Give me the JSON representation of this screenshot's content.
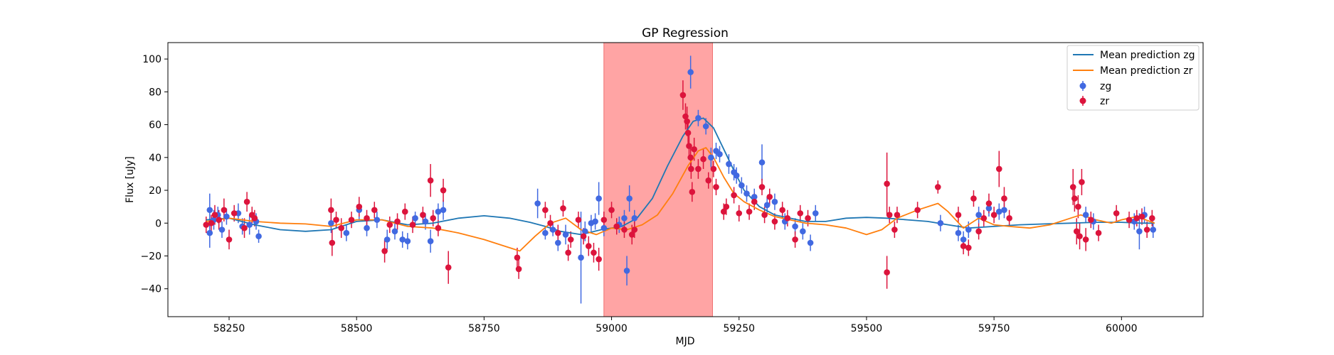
{
  "chart_data": {
    "type": "scatter",
    "title": "GP Regression",
    "xlabel": "MJD",
    "ylabel": "Flux [uJy]",
    "xlim": [
      58130,
      60160
    ],
    "ylim": [
      -57,
      110
    ],
    "xticks": [
      58250,
      58500,
      58750,
      59000,
      59250,
      59500,
      59750,
      60000
    ],
    "yticks": [
      -40,
      -20,
      0,
      20,
      40,
      60,
      80,
      100
    ],
    "grid": false,
    "legend": {
      "position": "top-right",
      "entries": [
        "Mean prediction zg",
        "Mean prediction zr",
        "zg",
        "zr"
      ]
    },
    "highlight_region": {
      "x0": 58985,
      "x1": 59198,
      "color": "#ff9a9a"
    },
    "colors": {
      "zg_line": "#1f77b4",
      "zr_line": "#ff7f0e",
      "zg_points": "#4169e1",
      "zr_points": "#dc143c"
    },
    "lines": [
      {
        "name": "Mean prediction zg",
        "x": [
          58205,
          58250,
          58300,
          58350,
          58400,
          58450,
          58500,
          58550,
          58600,
          58650,
          58700,
          58750,
          58800,
          58840,
          58870,
          58900,
          58940,
          58980,
          59020,
          59050,
          59080,
          59110,
          59140,
          59160,
          59180,
          59200,
          59220,
          59240,
          59260,
          59290,
          59320,
          59350,
          59380,
          59420,
          59460,
          59500,
          59540,
          59580,
          59620,
          59660,
          59700,
          59750,
          59800,
          59850,
          59900,
          59950,
          60000,
          60040,
          60065
        ],
        "y": [
          2,
          3,
          -1,
          -4,
          -5,
          -4,
          1,
          2,
          -1,
          0,
          3,
          4.5,
          3,
          0.5,
          -2,
          -5,
          -7,
          -4,
          -2,
          3,
          15,
          35,
          53,
          62,
          64,
          58,
          45,
          32,
          20,
          10,
          5,
          3,
          1,
          1,
          3,
          3.5,
          3,
          2,
          1,
          -1,
          -3,
          -2,
          -1,
          -0.5,
          0,
          0.5,
          0.5,
          0,
          0
        ]
      },
      {
        "name": "Mean prediction zr",
        "x": [
          58205,
          58250,
          58300,
          58350,
          58400,
          58450,
          58500,
          58550,
          58600,
          58650,
          58700,
          58750,
          58790,
          58820,
          58850,
          58880,
          58910,
          58940,
          58970,
          59000,
          59030,
          59060,
          59090,
          59120,
          59150,
          59170,
          59185,
          59200,
          59220,
          59240,
          59260,
          59290,
          59320,
          59350,
          59380,
          59420,
          59460,
          59500,
          59530,
          59560,
          59600,
          59640,
          59660,
          59690,
          59720,
          59750,
          59780,
          59820,
          59860,
          59900,
          59920,
          59950,
          59980,
          60000,
          60030,
          60065
        ],
        "y": [
          1,
          3,
          1,
          0,
          -0.5,
          -2,
          2,
          2,
          -2,
          -3,
          -6,
          -10,
          -14,
          -17,
          -8,
          0,
          3,
          -4,
          -7,
          -3,
          -4,
          -1,
          5,
          18,
          35,
          44,
          46,
          40,
          28,
          18,
          13,
          8,
          4,
          2,
          0,
          -1,
          -3,
          -7,
          -4,
          3,
          8,
          12,
          7,
          -3,
          3,
          -1,
          -2,
          -3,
          -1,
          3,
          5,
          2,
          0,
          2,
          4,
          0
        ]
      }
    ],
    "series": [
      {
        "name": "zg",
        "points": [
          [
            58212,
            8,
            10
          ],
          [
            58212,
            -6,
            9
          ],
          [
            58220,
            2,
            6
          ],
          [
            58228,
            5,
            5
          ],
          [
            58236,
            -4,
            5
          ],
          [
            58245,
            4,
            5
          ],
          [
            58268,
            6,
            6
          ],
          [
            58276,
            -2,
            5
          ],
          [
            58290,
            -1,
            6
          ],
          [
            58303,
            1,
            5
          ],
          [
            58308,
            -8,
            4
          ],
          [
            58450,
            0,
            6
          ],
          [
            58480,
            -6,
            5
          ],
          [
            58505,
            8,
            6
          ],
          [
            58520,
            -3,
            5
          ],
          [
            58540,
            2,
            5
          ],
          [
            58560,
            -10,
            6
          ],
          [
            58575,
            -5,
            5
          ],
          [
            58590,
            -10,
            5
          ],
          [
            58600,
            -11,
            5
          ],
          [
            58615,
            3,
            4
          ],
          [
            58635,
            1,
            5
          ],
          [
            58645,
            -11,
            7
          ],
          [
            58660,
            7,
            5
          ],
          [
            58670,
            8,
            6
          ],
          [
            58855,
            12,
            9
          ],
          [
            58870,
            -6,
            4
          ],
          [
            58885,
            -4,
            4
          ],
          [
            58895,
            -12,
            5
          ],
          [
            58910,
            -7,
            6
          ],
          [
            58940,
            -21,
            28
          ],
          [
            58948,
            -5,
            6
          ],
          [
            58960,
            0,
            5
          ],
          [
            58968,
            1,
            5
          ],
          [
            58975,
            15,
            10
          ],
          [
            58985,
            -3,
            5
          ],
          [
            59015,
            -1,
            5
          ],
          [
            59025,
            3,
            5
          ],
          [
            59030,
            -29,
            9
          ],
          [
            59035,
            15,
            8
          ],
          [
            59045,
            3,
            5
          ],
          [
            59155,
            92,
            10
          ],
          [
            59170,
            64,
            5
          ],
          [
            59185,
            59,
            5
          ],
          [
            59195,
            40,
            6
          ],
          [
            59205,
            44,
            5
          ],
          [
            59212,
            42,
            5
          ],
          [
            59230,
            36,
            6
          ],
          [
            59240,
            31,
            5
          ],
          [
            59245,
            29,
            5
          ],
          [
            59255,
            23,
            5
          ],
          [
            59265,
            18,
            5
          ],
          [
            59280,
            16,
            5
          ],
          [
            59295,
            37,
            11
          ],
          [
            59305,
            11,
            5
          ],
          [
            59320,
            13,
            5
          ],
          [
            59340,
            1,
            5
          ],
          [
            59360,
            -2,
            5
          ],
          [
            59375,
            -5,
            5
          ],
          [
            59390,
            -12,
            5
          ],
          [
            59400,
            6,
            5
          ],
          [
            59645,
            0,
            5
          ],
          [
            59680,
            -6,
            5
          ],
          [
            59690,
            -10,
            5
          ],
          [
            59700,
            -4,
            5
          ],
          [
            59720,
            5,
            5
          ],
          [
            59740,
            9,
            5
          ],
          [
            59760,
            7,
            5
          ],
          [
            59770,
            8,
            5
          ],
          [
            59930,
            5,
            5
          ],
          [
            59945,
            1,
            5
          ],
          [
            60025,
            1,
            5
          ],
          [
            60035,
            -5,
            11
          ],
          [
            60045,
            5,
            5
          ],
          [
            60062,
            -4,
            5
          ]
        ]
      },
      {
        "name": "zr",
        "points": [
          [
            58205,
            -1,
            5
          ],
          [
            58215,
            0,
            5
          ],
          [
            58222,
            5,
            6
          ],
          [
            58230,
            2,
            6
          ],
          [
            58240,
            8,
            7
          ],
          [
            58250,
            -10,
            6
          ],
          [
            58260,
            6,
            5
          ],
          [
            58280,
            -3,
            6
          ],
          [
            58285,
            13,
            6
          ],
          [
            58295,
            5,
            5
          ],
          [
            58300,
            3,
            5
          ],
          [
            58450,
            8,
            7
          ],
          [
            58452,
            -12,
            8
          ],
          [
            58460,
            2,
            5
          ],
          [
            58470,
            -3,
            6
          ],
          [
            58490,
            2,
            5
          ],
          [
            58505,
            10,
            6
          ],
          [
            58520,
            3,
            5
          ],
          [
            58535,
            8,
            5
          ],
          [
            58555,
            -17,
            7
          ],
          [
            58565,
            -1,
            5
          ],
          [
            58580,
            1,
            5
          ],
          [
            58595,
            7,
            5
          ],
          [
            58610,
            -1,
            5
          ],
          [
            58630,
            5,
            5
          ],
          [
            58645,
            26,
            10
          ],
          [
            58650,
            3,
            5
          ],
          [
            58660,
            -3,
            5
          ],
          [
            58670,
            20,
            7
          ],
          [
            58680,
            -27,
            10
          ],
          [
            58815,
            -21,
            6
          ],
          [
            58818,
            -28,
            6
          ],
          [
            58870,
            8,
            5
          ],
          [
            58880,
            0,
            5
          ],
          [
            58895,
            -6,
            5
          ],
          [
            58905,
            9,
            5
          ],
          [
            58915,
            -18,
            5
          ],
          [
            58920,
            -10,
            5
          ],
          [
            58935,
            2,
            5
          ],
          [
            58945,
            -8,
            5
          ],
          [
            58955,
            -14,
            6
          ],
          [
            58965,
            -18,
            6
          ],
          [
            58975,
            -22,
            7
          ],
          [
            58985,
            2,
            5
          ],
          [
            59000,
            8,
            5
          ],
          [
            59010,
            -2,
            5
          ],
          [
            59025,
            -4,
            5
          ],
          [
            59040,
            -7,
            6
          ],
          [
            59045,
            -4,
            5
          ],
          [
            59140,
            78,
            9
          ],
          [
            59145,
            65,
            8
          ],
          [
            59148,
            62,
            9
          ],
          [
            59150,
            55,
            8
          ],
          [
            59152,
            47,
            7
          ],
          [
            59155,
            40,
            7
          ],
          [
            59156,
            33,
            6
          ],
          [
            59158,
            19,
            6
          ],
          [
            59162,
            45,
            7
          ],
          [
            59170,
            33,
            6
          ],
          [
            59180,
            39,
            6
          ],
          [
            59190,
            26,
            5
          ],
          [
            59200,
            33,
            5
          ],
          [
            59205,
            22,
            5
          ],
          [
            59220,
            7,
            5
          ],
          [
            59225,
            10,
            5
          ],
          [
            59240,
            17,
            5
          ],
          [
            59250,
            6,
            5
          ],
          [
            59270,
            7,
            5
          ],
          [
            59280,
            13,
            5
          ],
          [
            59295,
            22,
            5
          ],
          [
            59300,
            5,
            5
          ],
          [
            59310,
            16,
            5
          ],
          [
            59320,
            1,
            5
          ],
          [
            59335,
            8,
            5
          ],
          [
            59345,
            3,
            5
          ],
          [
            59360,
            -10,
            5
          ],
          [
            59370,
            6,
            5
          ],
          [
            59385,
            3,
            5
          ],
          [
            59540,
            24,
            19
          ],
          [
            59540,
            -30,
            10
          ],
          [
            59545,
            5,
            5
          ],
          [
            59555,
            -4,
            5
          ],
          [
            59560,
            5,
            5
          ],
          [
            59600,
            8,
            5
          ],
          [
            59640,
            22,
            4
          ],
          [
            59680,
            5,
            5
          ],
          [
            59690,
            -14,
            5
          ],
          [
            59700,
            -15,
            5
          ],
          [
            59710,
            15,
            5
          ],
          [
            59720,
            -5,
            5
          ],
          [
            59730,
            3,
            5
          ],
          [
            59740,
            12,
            6
          ],
          [
            59750,
            5,
            5
          ],
          [
            59760,
            33,
            11
          ],
          [
            59770,
            15,
            7
          ],
          [
            59780,
            3,
            5
          ],
          [
            59905,
            22,
            11
          ],
          [
            59908,
            15,
            8
          ],
          [
            59912,
            -5,
            8
          ],
          [
            59915,
            10,
            7
          ],
          [
            59918,
            -8,
            8
          ],
          [
            59922,
            25,
            8
          ],
          [
            59930,
            -10,
            7
          ],
          [
            59940,
            2,
            5
          ],
          [
            59955,
            -6,
            5
          ],
          [
            59990,
            6,
            5
          ],
          [
            60015,
            2,
            5
          ],
          [
            60030,
            3,
            5
          ],
          [
            60040,
            4,
            5
          ],
          [
            60050,
            -4,
            5
          ],
          [
            60060,
            3,
            5
          ]
        ]
      }
    ]
  }
}
